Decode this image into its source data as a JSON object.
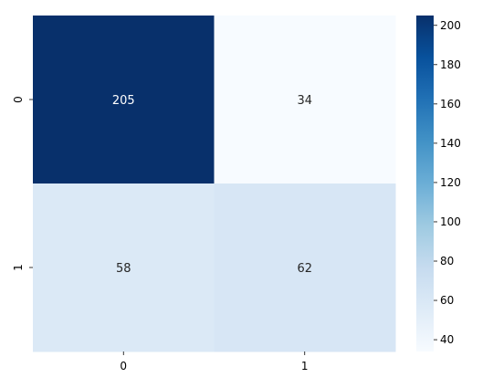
{
  "chart_data": {
    "type": "heatmap",
    "title": "",
    "xlabel": "",
    "ylabel": "",
    "x_categories": [
      "0",
      "1"
    ],
    "y_categories": [
      "0",
      "1"
    ],
    "values": [
      [
        205,
        34
      ],
      [
        58,
        62
      ]
    ],
    "annotations": [
      [
        "205",
        "34"
      ],
      [
        "58",
        "62"
      ]
    ],
    "colormap": "Blues",
    "color_range": [
      34,
      205
    ],
    "colorbar": {
      "ticks": [
        "40",
        "60",
        "80",
        "100",
        "120",
        "140",
        "160",
        "180",
        "200"
      ],
      "tick_values": [
        40,
        60,
        80,
        100,
        120,
        140,
        160,
        180,
        200
      ]
    },
    "colors": {
      "low": "#f7fbff",
      "mid": "#6baed6",
      "high": "#08306b",
      "text_dark": "#262626",
      "text_light": "#ffffff"
    }
  }
}
